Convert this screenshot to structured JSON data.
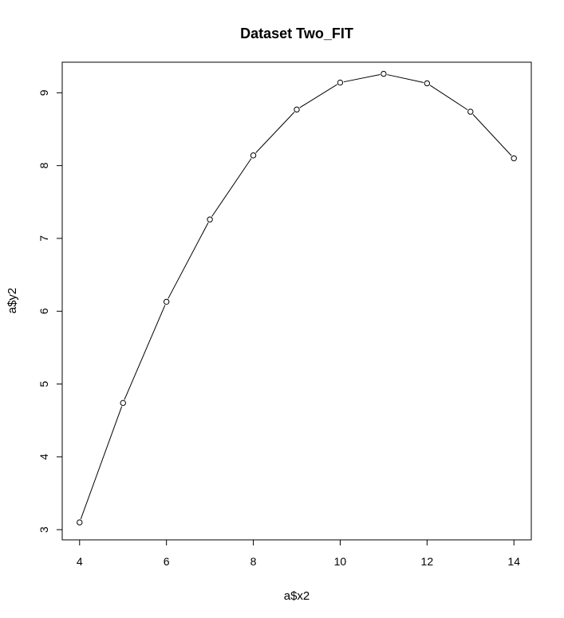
{
  "chart_data": {
    "type": "line",
    "title": "Dataset Two_FIT",
    "xlabel": "a$x2",
    "ylabel": "a$y2",
    "xlim": [
      3.6,
      14.4
    ],
    "ylim": [
      2.86,
      9.42
    ],
    "x_ticks": [
      4,
      6,
      8,
      10,
      12,
      14
    ],
    "y_ticks": [
      3,
      4,
      5,
      6,
      7,
      8,
      9
    ],
    "x_tick_labels": [
      "4",
      "6",
      "8",
      "10",
      "12",
      "14"
    ],
    "y_tick_labels": [
      "3",
      "4",
      "5",
      "6",
      "7",
      "8",
      "9"
    ],
    "grid": false,
    "markers": "open-circle",
    "series": [
      {
        "x": [
          4,
          5,
          6,
          7,
          8,
          9,
          10,
          11,
          12,
          13,
          14
        ],
        "y": [
          3.1,
          4.74,
          6.13,
          7.26,
          8.14,
          8.77,
          9.14,
          9.26,
          9.13,
          8.74,
          8.1
        ]
      }
    ]
  }
}
